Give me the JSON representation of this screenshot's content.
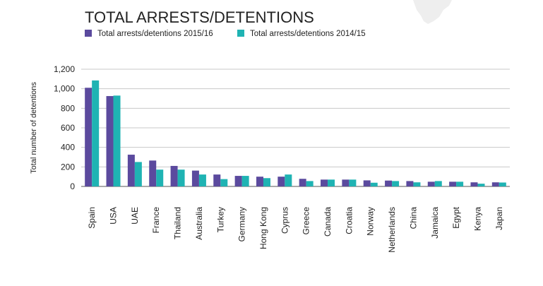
{
  "chart_data": {
    "type": "bar",
    "title": "TOTAL ARRESTS/DETENTIONS",
    "xlabel": "",
    "ylabel": "Total number of detentions",
    "ylim": [
      0,
      1200
    ],
    "yticks": [
      0,
      200,
      400,
      600,
      800,
      1000,
      1200
    ],
    "ytick_labels": [
      "0",
      "200",
      "400",
      "600",
      "800",
      "1,000",
      "1,200"
    ],
    "grid": true,
    "legend_position": "top-left",
    "categories": [
      "Spain",
      "USA",
      "UAE",
      "France",
      "Thailand",
      "Australia",
      "Turkey",
      "Germany",
      "Hong Kong",
      "Cyprus",
      "Greece",
      "Canada",
      "Croatia",
      "Norway",
      "Netherlands",
      "China",
      "Jamaica",
      "Egypt",
      "Kenya",
      "Japan"
    ],
    "series": [
      {
        "name": "Total arrests/detentions 2015/16",
        "color": "#5b4a9e",
        "values": [
          1010,
          925,
          325,
          265,
          210,
          162,
          122,
          108,
          100,
          100,
          78,
          70,
          70,
          62,
          60,
          55,
          48,
          48,
          42,
          42
        ]
      },
      {
        "name": "Total arrests/detentions 2014/15",
        "color": "#1fb3b3",
        "values": [
          1085,
          930,
          250,
          172,
          172,
          122,
          75,
          108,
          85,
          122,
          55,
          70,
          70,
          38,
          55,
          42,
          55,
          48,
          28,
          40
        ]
      }
    ]
  },
  "decoration": {
    "map_color": "#eeeeee"
  }
}
